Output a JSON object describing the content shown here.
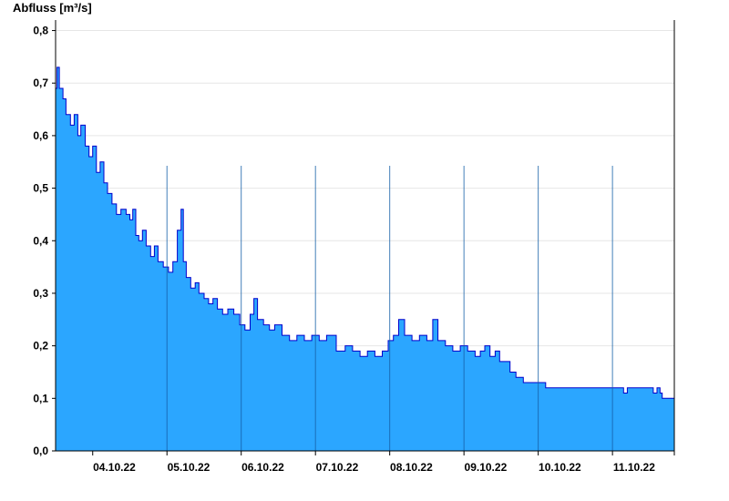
{
  "chart_data": {
    "type": "area",
    "title": "",
    "ylabel": "Abfluss [m³/s]",
    "xlabel": "",
    "ylim": [
      0,
      0.82
    ],
    "yticks": [
      0,
      0.1,
      0.2,
      0.3,
      0.4,
      0.5,
      0.6,
      0.7,
      0.8
    ],
    "ytick_labels": [
      "0,0",
      "0,1",
      "0,2",
      "0,3",
      "0,4",
      "0,5",
      "0,6",
      "0,7",
      "0,8"
    ],
    "xlim": [
      "03.10.22 12:00",
      "11.10.22 20:00"
    ],
    "xtick_labels": [
      "04.10.22",
      "05.10.22",
      "06.10.22",
      "07.10.22",
      "08.10.22",
      "09.10.22",
      "10.10.22",
      "11.10.22"
    ],
    "grid": true,
    "fill_color": "#2ba6ff",
    "line_color": "#0000cc",
    "series": [
      {
        "x_unit": "days since 03.10.22 12:00",
        "points": [
          [
            0.0,
            0.69
          ],
          [
            0.02,
            0.73
          ],
          [
            0.05,
            0.69
          ],
          [
            0.1,
            0.67
          ],
          [
            0.14,
            0.64
          ],
          [
            0.2,
            0.62
          ],
          [
            0.25,
            0.64
          ],
          [
            0.3,
            0.6
          ],
          [
            0.34,
            0.62
          ],
          [
            0.4,
            0.58
          ],
          [
            0.45,
            0.56
          ],
          [
            0.5,
            0.58
          ],
          [
            0.55,
            0.53
          ],
          [
            0.6,
            0.55
          ],
          [
            0.65,
            0.51
          ],
          [
            0.7,
            0.49
          ],
          [
            0.76,
            0.47
          ],
          [
            0.82,
            0.45
          ],
          [
            0.88,
            0.46
          ],
          [
            0.95,
            0.45
          ],
          [
            1.0,
            0.44
          ],
          [
            1.04,
            0.46
          ],
          [
            1.08,
            0.41
          ],
          [
            1.12,
            0.4
          ],
          [
            1.17,
            0.42
          ],
          [
            1.22,
            0.39
          ],
          [
            1.28,
            0.37
          ],
          [
            1.33,
            0.39
          ],
          [
            1.38,
            0.36
          ],
          [
            1.45,
            0.35
          ],
          [
            1.52,
            0.34
          ],
          [
            1.58,
            0.36
          ],
          [
            1.64,
            0.42
          ],
          [
            1.69,
            0.46
          ],
          [
            1.72,
            0.36
          ],
          [
            1.76,
            0.33
          ],
          [
            1.82,
            0.31
          ],
          [
            1.88,
            0.32
          ],
          [
            1.93,
            0.3
          ],
          [
            2.0,
            0.29
          ],
          [
            2.06,
            0.28
          ],
          [
            2.12,
            0.29
          ],
          [
            2.18,
            0.27
          ],
          [
            2.25,
            0.26
          ],
          [
            2.32,
            0.27
          ],
          [
            2.4,
            0.26
          ],
          [
            2.48,
            0.24
          ],
          [
            2.55,
            0.23
          ],
          [
            2.62,
            0.26
          ],
          [
            2.67,
            0.29
          ],
          [
            2.72,
            0.25
          ],
          [
            2.8,
            0.24
          ],
          [
            2.88,
            0.23
          ],
          [
            2.95,
            0.24
          ],
          [
            3.05,
            0.22
          ],
          [
            3.15,
            0.21
          ],
          [
            3.25,
            0.22
          ],
          [
            3.35,
            0.21
          ],
          [
            3.45,
            0.22
          ],
          [
            3.55,
            0.21
          ],
          [
            3.65,
            0.22
          ],
          [
            3.78,
            0.19
          ],
          [
            3.9,
            0.2
          ],
          [
            4.0,
            0.19
          ],
          [
            4.1,
            0.18
          ],
          [
            4.2,
            0.19
          ],
          [
            4.3,
            0.18
          ],
          [
            4.4,
            0.19
          ],
          [
            4.48,
            0.21
          ],
          [
            4.55,
            0.22
          ],
          [
            4.62,
            0.25
          ],
          [
            4.7,
            0.22
          ],
          [
            4.8,
            0.21
          ],
          [
            4.9,
            0.22
          ],
          [
            5.0,
            0.21
          ],
          [
            5.08,
            0.25
          ],
          [
            5.15,
            0.21
          ],
          [
            5.25,
            0.2
          ],
          [
            5.35,
            0.19
          ],
          [
            5.45,
            0.2
          ],
          [
            5.55,
            0.19
          ],
          [
            5.65,
            0.18
          ],
          [
            5.72,
            0.19
          ],
          [
            5.78,
            0.2
          ],
          [
            5.85,
            0.18
          ],
          [
            5.92,
            0.19
          ],
          [
            5.98,
            0.17
          ],
          [
            6.05,
            0.17
          ],
          [
            6.12,
            0.15
          ],
          [
            6.2,
            0.14
          ],
          [
            6.3,
            0.13
          ],
          [
            6.45,
            0.13
          ],
          [
            6.6,
            0.12
          ],
          [
            6.75,
            0.12
          ],
          [
            6.9,
            0.12
          ],
          [
            7.05,
            0.12
          ],
          [
            7.2,
            0.12
          ],
          [
            7.35,
            0.12
          ],
          [
            7.5,
            0.12
          ],
          [
            7.6,
            0.12
          ],
          [
            7.65,
            0.11
          ],
          [
            7.7,
            0.12
          ],
          [
            7.8,
            0.12
          ],
          [
            7.9,
            0.12
          ],
          [
            8.0,
            0.12
          ],
          [
            8.05,
            0.11
          ],
          [
            8.1,
            0.12
          ],
          [
            8.14,
            0.11
          ],
          [
            8.17,
            0.1
          ]
        ]
      }
    ]
  }
}
